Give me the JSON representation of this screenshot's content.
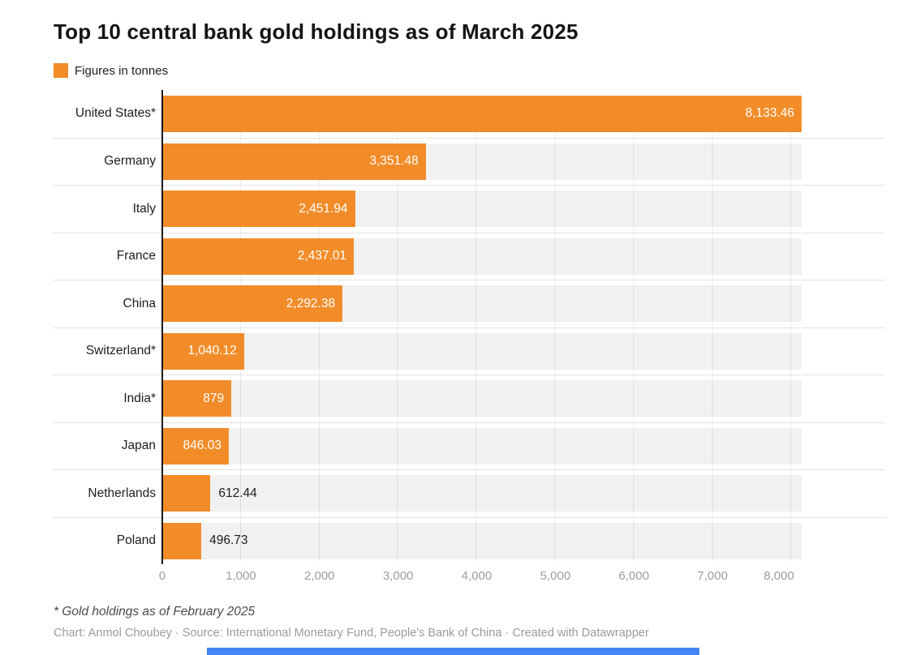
{
  "title": "Top 10 central bank gold holdings as of March 2025",
  "legend": {
    "label": "Figures in tonnes",
    "swatch_color": "#F28C28"
  },
  "chart_data": {
    "type": "bar",
    "orientation": "horizontal",
    "title": "Top 10 central bank gold holdings as of March 2025",
    "unit_note": "Figures in tonnes",
    "categories": [
      "United States*",
      "Germany",
      "Italy",
      "France",
      "China",
      "Switzerland*",
      "India*",
      "Japan",
      "Netherlands",
      "Poland"
    ],
    "values": [
      8133.46,
      3351.48,
      2451.94,
      2437.01,
      2292.38,
      1040.12,
      879,
      846.03,
      612.44,
      496.73
    ],
    "value_labels": [
      "8,133.46",
      "3,351.48",
      "2,451.94",
      "2,437.01",
      "2,292.38",
      "1,040.12",
      "879",
      "846.03",
      "612.44",
      "496.73"
    ],
    "label_placement": [
      "inside",
      "inside",
      "inside",
      "inside",
      "inside",
      "inside",
      "inside",
      "inside",
      "outside",
      "outside"
    ],
    "xlabel": "",
    "ylabel": "",
    "xlim": [
      0,
      8133.46
    ],
    "x_ticks": [
      0,
      1000,
      2000,
      3000,
      4000,
      5000,
      6000,
      7000,
      8000
    ],
    "x_tick_labels": [
      "0",
      "1,000",
      "2,000",
      "3,000",
      "4,000",
      "5,000",
      "6,000",
      "7,000",
      "8,000"
    ],
    "bar_color": "#F28C28",
    "grid": true,
    "legend_position": "top-left"
  },
  "footnote": "* Gold holdings as of February 2025",
  "credit": "Chart: Anmol Choubey · Source: International Monetary Fund, People's Bank of China · Created with Datawrapper"
}
